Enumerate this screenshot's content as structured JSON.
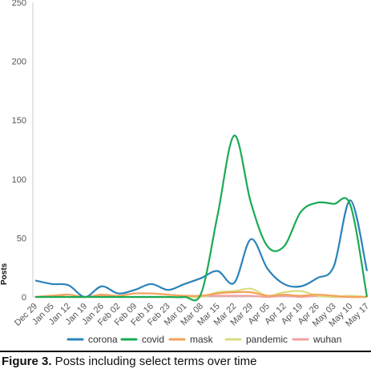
{
  "chart_data": {
    "type": "line",
    "ylabel": "Posts",
    "xlabel": "",
    "ylim": [
      0,
      250
    ],
    "yticks": [
      0,
      50,
      100,
      150,
      200,
      250
    ],
    "categories": [
      "Dec 29",
      "Jan 05",
      "Jan 12",
      "Jan 19",
      "Jan 26",
      "Feb 02",
      "Feb 09",
      "Feb 16",
      "Feb 23",
      "Mar 01",
      "Mar 08",
      "Mar 15",
      "Mar 22",
      "Mar 29",
      "Apr 05",
      "Apr 12",
      "Apr 19",
      "Apr 26",
      "May 03",
      "May 10",
      "May 17"
    ],
    "grid": false,
    "legend_position": "bottom",
    "series": [
      {
        "name": "corona",
        "color": "#2b83ba",
        "values": [
          14,
          11,
          10,
          0,
          9,
          3,
          6,
          11,
          6,
          11,
          16,
          22,
          12,
          49,
          24,
          11,
          9,
          16,
          26,
          82,
          22
        ]
      },
      {
        "name": "covid",
        "color": "#1aaa55",
        "values": [
          0,
          0,
          0,
          0,
          0,
          0,
          0,
          0,
          0,
          0,
          3,
          70,
          137,
          80,
          43,
          43,
          72,
          80,
          79,
          78,
          0
        ]
      },
      {
        "name": "mask",
        "color": "#f4a259",
        "values": [
          0,
          1,
          2,
          0,
          2,
          1,
          3,
          3,
          2,
          1,
          1,
          3,
          4,
          4,
          1,
          2,
          1,
          2,
          1,
          0,
          0
        ]
      },
      {
        "name": "pandemic",
        "color": "#d9dc7e",
        "values": [
          0,
          0,
          0,
          0,
          0,
          0,
          0,
          0,
          0,
          0,
          0,
          4,
          5,
          7,
          1,
          4,
          5,
          1,
          0,
          1,
          0
        ]
      },
      {
        "name": "wuhan",
        "color": "#f4a0a0",
        "values": [
          0,
          1,
          0,
          0,
          1,
          0,
          0,
          0,
          0,
          0,
          1,
          1,
          1,
          1,
          0,
          1,
          0,
          1,
          0,
          0,
          0
        ]
      }
    ]
  },
  "caption": {
    "label": "Figure 3.",
    "text": " Posts including select terms over time"
  }
}
